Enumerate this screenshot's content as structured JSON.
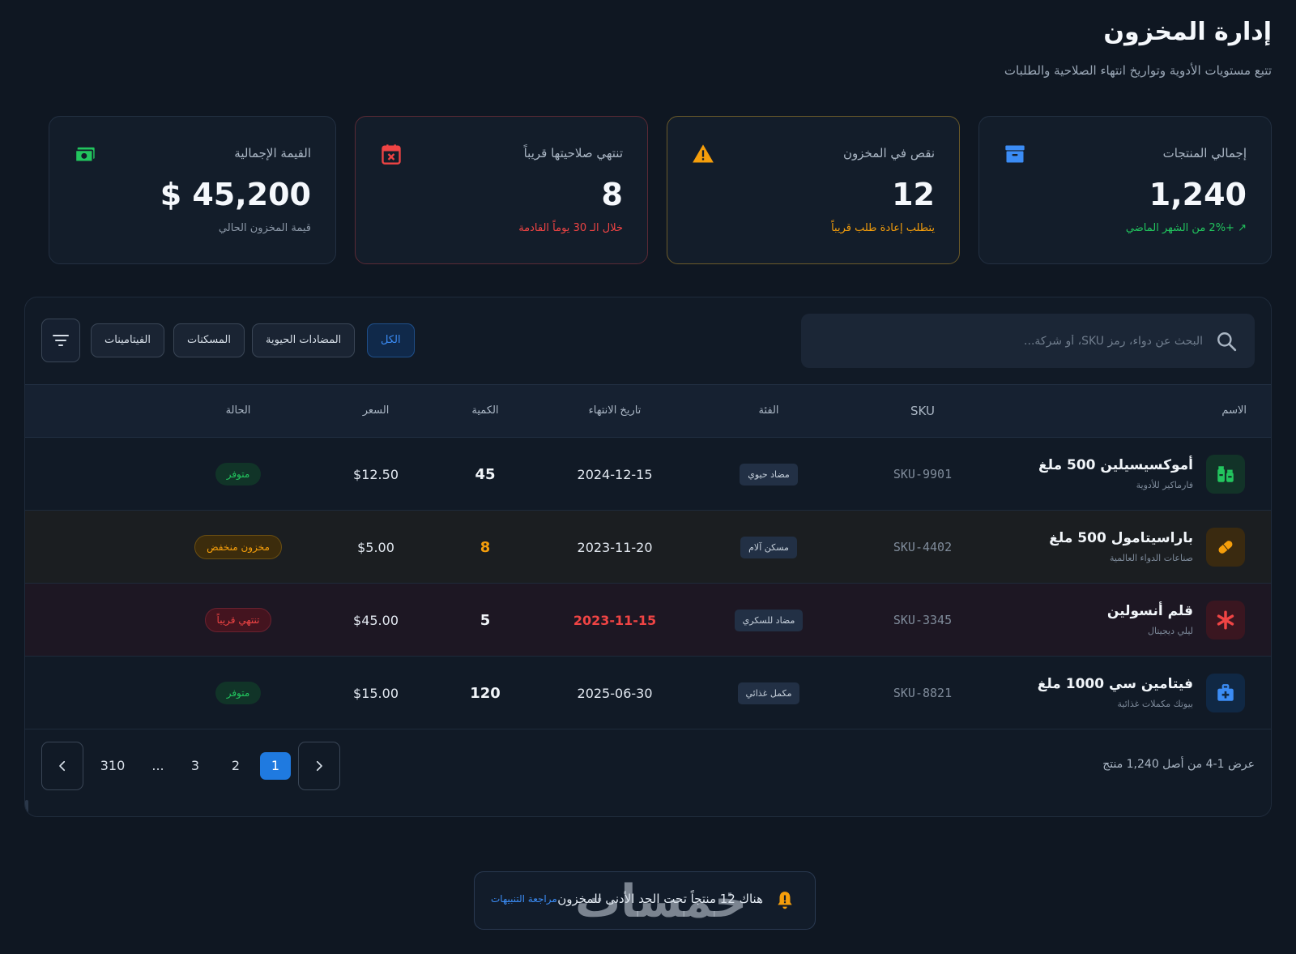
{
  "header": {
    "title": "إدارة المخزون",
    "subtitle": "تتبع مستويات الأدوية وتواريخ انتهاء الصلاحية والطلبات"
  },
  "stats": [
    {
      "label": "إجمالي المنتجات",
      "value": "1,240",
      "note": "+2% من الشهر الماضي",
      "icon": "archive-box-icon",
      "color": "#3b8cf5"
    },
    {
      "label": "نقص في المخزون",
      "value": "12",
      "note": "يتطلب إعادة طلب قريباً",
      "icon": "warning-triangle-icon",
      "color": "#f59e0b"
    },
    {
      "label": "تنتهي صلاحيتها قريباً",
      "value": "8",
      "note": "خلال الـ 30 يوماً القادمة",
      "icon": "calendar-x-icon",
      "color": "#ef4444"
    },
    {
      "label": "القيمة الإجمالية",
      "value": "$ 45,200",
      "note": "قيمة المخزون الحالي",
      "icon": "money-icon",
      "color": "#22c55e"
    }
  ],
  "toolbar": {
    "search_placeholder": "البحث عن دواء، رمز SKU، أو شركة...",
    "filters": [
      "الكل",
      "المضادات الحيوية",
      "المسكنات",
      "الفيتامينات"
    ],
    "active_filter": "الكل"
  },
  "table": {
    "columns": [
      "الاسم",
      "SKU",
      "الفئة",
      "تاريخ الانتهاء",
      "الكمية",
      "السعر",
      "الحالة"
    ],
    "rows": [
      {
        "name": "أموكسيسيلين 500 ملغ",
        "maker": "فارماكير للأدوية",
        "sku": "SKU-9901",
        "category": "مضاد حيوي",
        "expiry": "2024-12-15",
        "qty": "45",
        "price": "$12.50",
        "status": "متوفر",
        "icon": "pills-bottle-icon"
      },
      {
        "name": "باراسيتامول 500 ملغ",
        "maker": "صناعات الدواء العالمية",
        "sku": "SKU-4402",
        "category": "مسكن آلام",
        "expiry": "2023-11-20",
        "qty": "8",
        "price": "$5.00",
        "status": "مخزون منخفض",
        "icon": "capsule-icon"
      },
      {
        "name": "قلم أنسولين",
        "maker": "ليلي ديجيتال",
        "sku": "SKU-3345",
        "category": "مضاد للسكري",
        "expiry": "2023-11-15",
        "qty": "5",
        "price": "$45.00",
        "status": "تنتهي قريباً",
        "icon": "asterisk-icon"
      },
      {
        "name": "فيتامين سي 1000 ملغ",
        "maker": "بيوتك مكملات غذائية",
        "sku": "SKU-8821",
        "category": "مكمل غذائي",
        "expiry": "2025-06-30",
        "qty": "120",
        "price": "$15.00",
        "status": "متوفر",
        "icon": "medical-kit-icon"
      }
    ]
  },
  "pagination": {
    "summary": "عرض 1-4 من أصل 1,240 منتج",
    "pages": [
      "1",
      "2",
      "3",
      "...",
      "310"
    ],
    "current": "1"
  },
  "alert": {
    "text": "هناك 12 منتجاً تحت الحد الأدنى للمخزون",
    "link": "مراجعة التنبيهات"
  },
  "watermark": "خمسات"
}
